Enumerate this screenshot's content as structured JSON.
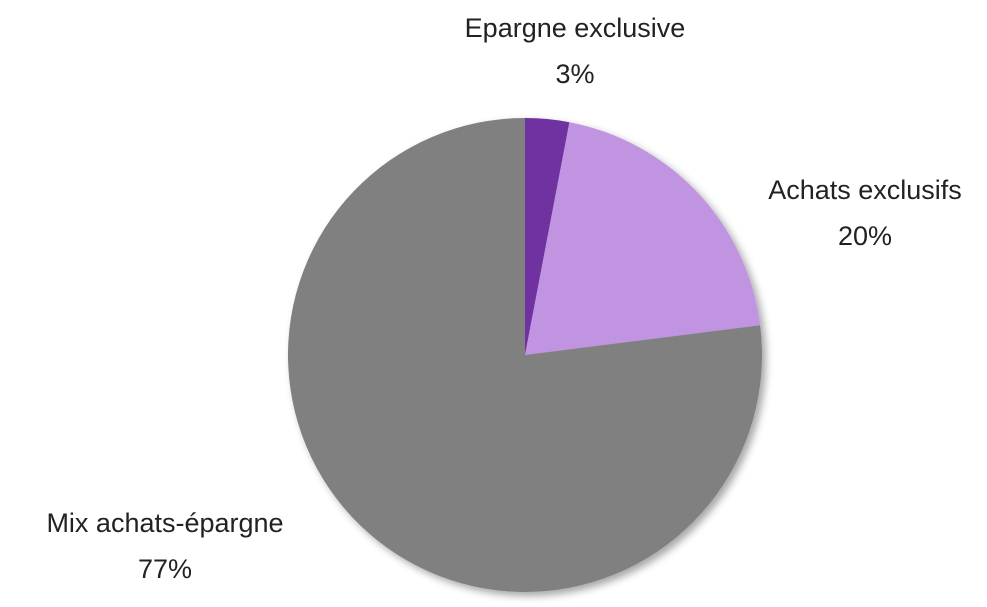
{
  "chart_data": {
    "type": "pie",
    "categories": [
      "Epargne exclusive",
      "Achats exclusifs",
      "Mix achats-épargne"
    ],
    "values": [
      3,
      20,
      77
    ],
    "value_labels": [
      "3%",
      "20%",
      "77%"
    ],
    "colors": [
      "#7030a0",
      "#c094e0",
      "#808080"
    ]
  }
}
